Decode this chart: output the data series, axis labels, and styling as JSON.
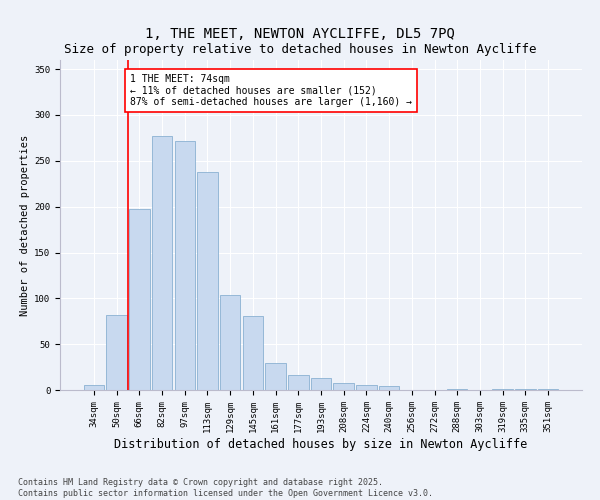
{
  "title": "1, THE MEET, NEWTON AYCLIFFE, DL5 7PQ",
  "subtitle": "Size of property relative to detached houses in Newton Aycliffe",
  "xlabel": "Distribution of detached houses by size in Newton Aycliffe",
  "ylabel": "Number of detached properties",
  "categories": [
    "34sqm",
    "50sqm",
    "66sqm",
    "82sqm",
    "97sqm",
    "113sqm",
    "129sqm",
    "145sqm",
    "161sqm",
    "177sqm",
    "193sqm",
    "208sqm",
    "224sqm",
    "240sqm",
    "256sqm",
    "272sqm",
    "288sqm",
    "303sqm",
    "319sqm",
    "335sqm",
    "351sqm"
  ],
  "values": [
    5,
    82,
    197,
    277,
    272,
    238,
    104,
    81,
    29,
    16,
    13,
    8,
    6,
    4,
    0,
    0,
    1,
    0,
    1,
    1,
    1
  ],
  "bar_color": "#c8d9ef",
  "bar_edge_color": "#7aa6cc",
  "vline_x": 1.5,
  "vline_color": "red",
  "annotation_text": "1 THE MEET: 74sqm\n← 11% of detached houses are smaller (152)\n87% of semi-detached houses are larger (1,160) →",
  "annotation_box_color": "white",
  "annotation_box_edge": "red",
  "ylim": [
    0,
    360
  ],
  "yticks": [
    0,
    50,
    100,
    150,
    200,
    250,
    300,
    350
  ],
  "background_color": "#eef2f9",
  "footer": "Contains HM Land Registry data © Crown copyright and database right 2025.\nContains public sector information licensed under the Open Government Licence v3.0.",
  "title_fontsize": 10,
  "subtitle_fontsize": 9,
  "xlabel_fontsize": 8.5,
  "ylabel_fontsize": 7.5,
  "tick_fontsize": 6.5,
  "annot_fontsize": 7,
  "footer_fontsize": 6
}
